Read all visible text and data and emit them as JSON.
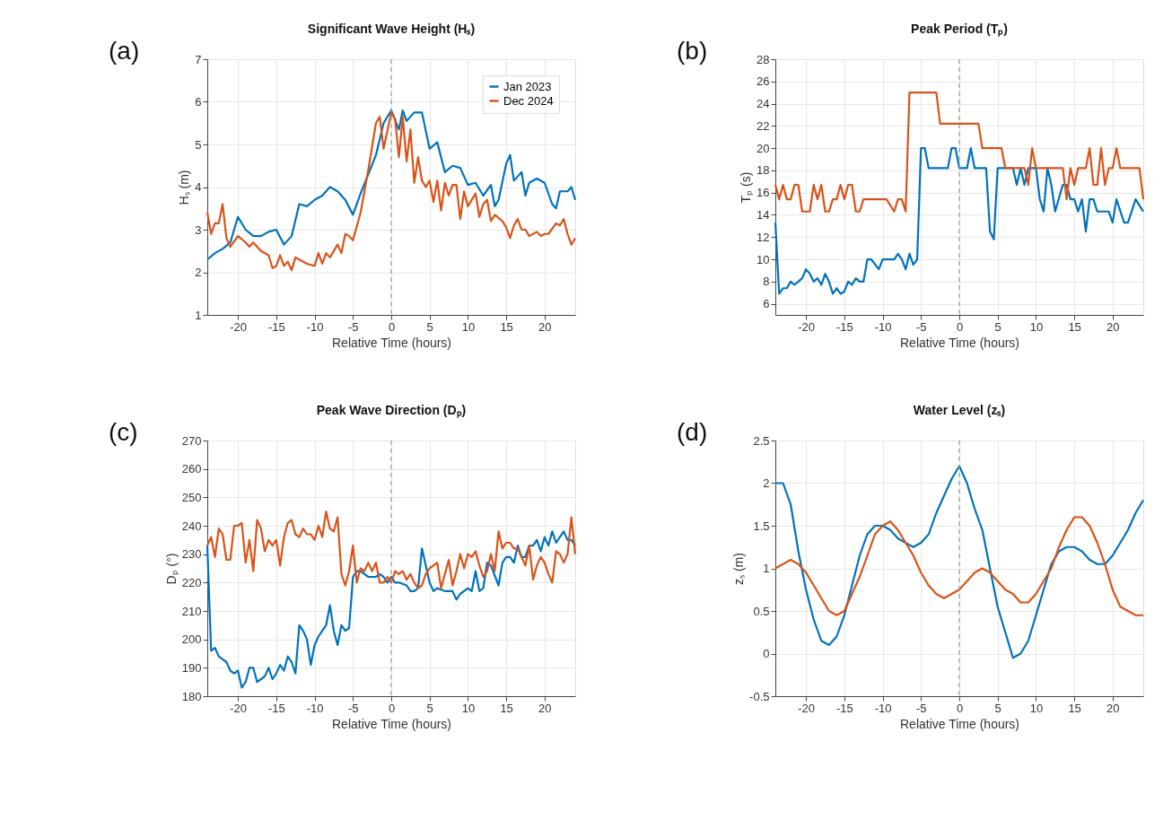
{
  "chart_data": [
    {
      "type": "line",
      "title": "Significant Wave Height (Hₛ)",
      "xlabel": "Relative Time (hours)",
      "ylabel": "Hₛ (m)",
      "annotations": [
        "(a)"
      ],
      "xlim": [
        -24,
        24
      ],
      "xticks": [
        -20,
        -15,
        -10,
        -5,
        0,
        5,
        10,
        15,
        20
      ],
      "ylim": [
        1,
        7
      ],
      "yticks": [
        1,
        2,
        3,
        4,
        5,
        6,
        7
      ],
      "grid": true,
      "legend": "top right",
      "line_style": "solid",
      "ref_lines": [
        {
          "axis": "x",
          "value": 0,
          "color": "#999999",
          "line_style": "dashed"
        }
      ],
      "series": [
        {
          "name": "Jan 2023",
          "color": "#0072bd",
          "x": [
            -24,
            -23,
            -22,
            -21,
            -20,
            -19,
            -18,
            -17,
            -16,
            -15,
            -14,
            -13,
            -12,
            -11,
            -10,
            -9,
            -8,
            -7,
            -6,
            -5,
            -4,
            -3,
            -2,
            -1,
            0,
            1,
            1.5,
            2,
            3,
            4,
            5,
            6,
            7,
            8,
            9,
            10,
            11,
            12,
            13,
            13.5,
            14,
            15,
            15.5,
            16,
            17,
            17.5,
            18,
            19,
            20,
            21,
            21.5,
            22,
            23,
            23.5,
            24
          ],
          "values": [
            2.3,
            2.45,
            2.55,
            2.7,
            3.3,
            3.0,
            2.85,
            2.85,
            2.95,
            3.0,
            2.65,
            2.85,
            3.6,
            3.55,
            3.7,
            3.8,
            4.0,
            3.9,
            3.7,
            3.35,
            3.85,
            4.3,
            4.75,
            5.5,
            5.8,
            5.35,
            5.8,
            5.55,
            5.75,
            5.75,
            4.9,
            5.05,
            4.35,
            4.5,
            4.45,
            4.05,
            4.1,
            3.8,
            4.05,
            3.55,
            3.7,
            4.55,
            4.75,
            4.15,
            4.35,
            3.8,
            4.1,
            4.2,
            4.1,
            3.6,
            3.5,
            3.9,
            3.9,
            4.0,
            3.7
          ]
        },
        {
          "name": "Dec 2024",
          "color": "#d95319",
          "x": [
            -24,
            -23.5,
            -23,
            -22.5,
            -22,
            -21.5,
            -21,
            -20,
            -19,
            -18.5,
            -18,
            -17,
            -16,
            -15.5,
            -15,
            -14.5,
            -14,
            -13.5,
            -13,
            -12.5,
            -12,
            -11,
            -10,
            -9.5,
            -9,
            -8.5,
            -8,
            -7,
            -6.5,
            -6,
            -5.5,
            -5,
            -4,
            -3,
            -2,
            -1.5,
            -1,
            0,
            0.5,
            1,
            1.5,
            2,
            2.5,
            3,
            3.5,
            4,
            4.5,
            5,
            5.5,
            6,
            6.5,
            7,
            7.5,
            8,
            8.5,
            9,
            9.5,
            10,
            11,
            11.5,
            12,
            12.5,
            13,
            13.5,
            14.5,
            15,
            15.5,
            16,
            16.5,
            17,
            17.5,
            18,
            19,
            19.5,
            20,
            20.5,
            21.5,
            22,
            22.5,
            23,
            23.5,
            24
          ],
          "values": [
            3.4,
            2.9,
            3.15,
            3.15,
            3.6,
            2.8,
            2.6,
            2.85,
            2.7,
            2.6,
            2.7,
            2.5,
            2.4,
            2.1,
            2.15,
            2.4,
            2.15,
            2.25,
            2.05,
            2.35,
            2.3,
            2.2,
            2.15,
            2.45,
            2.2,
            2.45,
            2.35,
            2.65,
            2.45,
            2.9,
            2.85,
            2.75,
            3.4,
            4.4,
            5.5,
            5.65,
            4.9,
            5.75,
            5.6,
            4.7,
            5.65,
            4.6,
            5.35,
            4.1,
            4.7,
            4.15,
            4.0,
            4.15,
            3.65,
            4.15,
            3.45,
            4.1,
            3.8,
            4.05,
            4.05,
            3.25,
            3.9,
            3.55,
            3.85,
            3.3,
            3.6,
            3.7,
            3.2,
            3.35,
            3.2,
            3.05,
            2.8,
            3.1,
            3.25,
            3.0,
            3.0,
            2.85,
            2.95,
            2.85,
            2.9,
            2.9,
            3.15,
            3.1,
            3.25,
            2.9,
            2.65,
            2.8
          ]
        }
      ]
    },
    {
      "type": "line",
      "title": "Peak Period (Tₚ)",
      "xlabel": "Relative Time (hours)",
      "ylabel": "Tₚ (s)",
      "annotations": [
        "(b)"
      ],
      "xlim": [
        -24,
        24
      ],
      "xticks": [
        -20,
        -15,
        -10,
        -5,
        0,
        5,
        10,
        15,
        20
      ],
      "ylim": [
        5,
        28
      ],
      "yticks": [
        6,
        8,
        10,
        12,
        14,
        16,
        18,
        20,
        22,
        24,
        26,
        28
      ],
      "grid": true,
      "line_style": "solid",
      "ref_lines": [
        {
          "axis": "x",
          "value": 0,
          "color": "#999999",
          "line_style": "dashed"
        }
      ],
      "series": [
        {
          "color": "#0072bd",
          "x": [
            -24,
            -23.5,
            -23,
            -22.5,
            -22,
            -21.5,
            -21,
            -20.5,
            -20,
            -19.5,
            -19,
            -18.5,
            -18,
            -17.5,
            -17,
            -16.5,
            -16,
            -15.5,
            -15,
            -14.5,
            -14,
            -13.5,
            -13,
            -12.5,
            -12,
            -11.5,
            -10.5,
            -10,
            -8.5,
            -8,
            -7.5,
            -7,
            -6.5,
            -6,
            -5.5,
            -5,
            -4.5,
            -4,
            -1.5,
            -1,
            -0.5,
            0,
            1,
            1.5,
            2,
            3.5,
            4,
            4.5,
            5,
            7,
            7.5,
            8,
            8.5,
            9,
            10,
            10.5,
            11,
            11.5,
            12,
            12.5,
            13.5,
            14,
            14.5,
            15,
            15.5,
            16,
            16.5,
            17,
            17.5,
            18,
            19.5,
            20,
            20.5,
            21.5,
            22,
            23,
            24
          ],
          "values": [
            13.3,
            6.9,
            7.4,
            7.4,
            8.0,
            7.7,
            8.0,
            8.3,
            9.1,
            8.7,
            8.0,
            8.3,
            7.7,
            8.7,
            8.0,
            6.9,
            7.4,
            6.9,
            7.1,
            8.0,
            7.7,
            8.3,
            8.0,
            8.0,
            10.0,
            10.0,
            9.1,
            10.0,
            10.0,
            10.5,
            10.0,
            9.1,
            10.5,
            9.5,
            10.0,
            20.0,
            20.0,
            18.2,
            18.2,
            20.0,
            20.0,
            18.2,
            18.2,
            20.0,
            18.2,
            18.2,
            12.5,
            11.8,
            18.2,
            18.2,
            16.7,
            18.2,
            16.7,
            18.2,
            18.2,
            15.4,
            14.3,
            18.2,
            16.7,
            14.3,
            16.7,
            16.7,
            15.4,
            15.4,
            14.3,
            15.4,
            12.5,
            15.4,
            15.4,
            14.3,
            14.3,
            13.3,
            15.4,
            13.3,
            13.3,
            15.4,
            14.3
          ]
        },
        {
          "color": "#d95319",
          "x": [
            -24,
            -23.5,
            -23,
            -22.5,
            -22,
            -21.5,
            -21,
            -20.5,
            -19.5,
            -19,
            -18.5,
            -18,
            -17.5,
            -17,
            -16.5,
            -16,
            -15.5,
            -15,
            -14.5,
            -14,
            -13.5,
            -13,
            -12.5,
            -9.5,
            -8.5,
            -8,
            -7.5,
            -7,
            -6.5,
            -3,
            -2.5,
            2.5,
            3,
            5.5,
            6,
            8.5,
            9,
            9.5,
            10,
            13.5,
            14,
            14.5,
            15,
            15.5,
            16.5,
            17,
            17.5,
            18,
            18.5,
            19,
            19.5,
            20,
            20.5,
            21,
            23.5,
            24
          ],
          "values": [
            16.7,
            15.4,
            16.7,
            15.4,
            15.4,
            16.7,
            16.7,
            14.3,
            14.3,
            16.7,
            15.4,
            16.7,
            14.3,
            14.3,
            15.4,
            15.4,
            16.7,
            15.4,
            16.7,
            16.7,
            14.3,
            14.3,
            15.4,
            15.4,
            14.3,
            15.4,
            15.4,
            14.3,
            25.0,
            25.0,
            22.2,
            22.2,
            20.0,
            20.0,
            18.2,
            18.2,
            16.7,
            20.0,
            18.2,
            18.2,
            15.4,
            18.2,
            16.7,
            18.2,
            18.2,
            20.0,
            16.7,
            16.7,
            20.0,
            16.7,
            18.2,
            18.2,
            20.0,
            18.2,
            18.2,
            15.4
          ]
        }
      ]
    },
    {
      "type": "line",
      "title": "Peak Wave Direction (Dₚ)",
      "xlabel": "Relative Time (hours)",
      "ylabel": "Dₚ (°)",
      "annotations": [
        "(c)"
      ],
      "xlim": [
        -24,
        24
      ],
      "xticks": [
        -20,
        -15,
        -10,
        -5,
        0,
        5,
        10,
        15,
        20
      ],
      "ylim": [
        180,
        270
      ],
      "yticks": [
        180,
        190,
        200,
        210,
        220,
        230,
        240,
        250,
        260,
        270
      ],
      "grid": true,
      "line_style": "solid",
      "ref_lines": [
        {
          "axis": "x",
          "value": 0,
          "color": "#999999",
          "line_style": "dashed"
        }
      ],
      "series": [
        {
          "color": "#0072bd",
          "x": [
            -24,
            -23.5,
            -23,
            -22.5,
            -22,
            -21.5,
            -21,
            -20.5,
            -20,
            -19.5,
            -19,
            -18.5,
            -18,
            -17.5,
            -17,
            -16.5,
            -16,
            -15.5,
            -15,
            -14.5,
            -14,
            -13.5,
            -13,
            -12.5,
            -12,
            -11.5,
            -11,
            -10.5,
            -10,
            -9.5,
            -9,
            -8.5,
            -8,
            -7.5,
            -7,
            -6.5,
            -6,
            -5.5,
            -5,
            -4.5,
            -4,
            -3,
            -2,
            -1.5,
            -1,
            -0.5,
            0,
            0.5,
            1,
            2,
            2.5,
            3,
            3.5,
            4,
            5,
            5.5,
            6,
            7,
            8,
            8.5,
            9,
            10,
            10.5,
            11,
            11.5,
            12,
            12.5,
            13,
            14,
            14.5,
            15,
            15.5,
            16,
            16.5,
            17,
            17.5,
            18,
            18.5,
            19,
            19.5,
            20,
            20.5,
            21,
            21.5,
            22,
            22.5,
            23,
            23.5,
            24
          ],
          "values": [
            233,
            196,
            197,
            194,
            193,
            192,
            189,
            188,
            189,
            183,
            185,
            190,
            190,
            185,
            186,
            187,
            190,
            186,
            188,
            191,
            189,
            194,
            192,
            188,
            205,
            203,
            200,
            191,
            198,
            201,
            203,
            205,
            212,
            203,
            198,
            205,
            203,
            204,
            222,
            224,
            224,
            222,
            222,
            223,
            222,
            220,
            222,
            220,
            220,
            219,
            217,
            217,
            218,
            232,
            220,
            217,
            218,
            217,
            217,
            214,
            216,
            218,
            217,
            224,
            217,
            218,
            227,
            226,
            219,
            227,
            229,
            229,
            227,
            233,
            229,
            229,
            233,
            233,
            235,
            231,
            236,
            233,
            238,
            234,
            236,
            238,
            235,
            235,
            233
          ]
        },
        {
          "color": "#d95319",
          "x": [
            -24,
            -23.5,
            -23,
            -22.5,
            -22,
            -21.5,
            -21,
            -20.5,
            -20,
            -19.5,
            -19,
            -18.5,
            -18,
            -17.5,
            -17,
            -16.5,
            -16,
            -15.5,
            -15,
            -14.5,
            -14,
            -13.5,
            -13,
            -12.5,
            -12,
            -11.5,
            -11,
            -10.5,
            -10,
            -9.5,
            -9,
            -8.5,
            -8,
            -7.5,
            -7,
            -6.5,
            -6,
            -5.5,
            -5,
            -4.5,
            -4,
            -3.5,
            -3,
            -2.5,
            -2,
            -1.5,
            -1,
            -0.5,
            0,
            0.5,
            1,
            1.5,
            2,
            2.5,
            3,
            3.5,
            4,
            4.5,
            5,
            5.5,
            6,
            6.5,
            7,
            7.5,
            8,
            8.5,
            9,
            9.5,
            10,
            10.5,
            11,
            11.5,
            12,
            12.5,
            13,
            13.5,
            14,
            14.5,
            15,
            15.5,
            16,
            16.5,
            17,
            17.5,
            18,
            18.5,
            19,
            19.5,
            20,
            20.5,
            21,
            21.5,
            22,
            22.5,
            23,
            23.5,
            24
          ],
          "values": [
            233,
            236,
            229,
            239,
            237,
            228,
            228,
            240,
            240,
            241,
            227,
            235,
            224,
            242,
            239,
            231,
            235,
            233,
            235,
            226,
            236,
            241,
            242,
            237,
            236,
            239,
            237,
            237,
            235,
            240,
            236,
            245,
            239,
            238,
            243,
            223,
            219,
            224,
            233,
            220,
            225,
            224,
            227,
            224,
            227,
            220,
            220,
            222,
            220,
            224,
            223,
            224,
            221,
            223,
            220,
            218,
            219,
            223,
            225,
            226,
            227,
            218,
            223,
            228,
            219,
            224,
            230,
            225,
            230,
            229,
            231,
            226,
            222,
            224,
            230,
            224,
            238,
            232,
            234,
            234,
            232,
            232,
            229,
            226,
            233,
            221,
            226,
            229,
            227,
            223,
            220,
            231,
            230,
            227,
            230,
            243,
            230
          ]
        }
      ]
    },
    {
      "type": "line",
      "title": "Water Level (zₛ)",
      "xlabel": "Relative Time (hours)",
      "ylabel": "zₛ (m)",
      "annotations": [
        "(d)"
      ],
      "xlim": [
        -24,
        24
      ],
      "xticks": [
        -20,
        -15,
        -10,
        -5,
        0,
        5,
        10,
        15,
        20
      ],
      "ylim": [
        -0.5,
        2.5
      ],
      "yticks": [
        -0.5,
        0,
        0.5,
        1,
        1.5,
        2,
        2.5
      ],
      "grid": true,
      "line_style": "solid",
      "ref_lines": [
        {
          "axis": "x",
          "value": 0,
          "color": "#999999",
          "line_style": "dashed"
        }
      ],
      "series": [
        {
          "color": "#0072bd",
          "x": [
            -24,
            -23,
            -22,
            -21,
            -20,
            -19,
            -18,
            -17,
            -16,
            -15,
            -14,
            -13,
            -12,
            -11,
            -10,
            -9,
            -8,
            -7,
            -6,
            -5,
            -4,
            -3,
            -2,
            -1,
            0,
            1,
            2,
            3,
            4,
            5,
            6,
            7,
            8,
            9,
            10,
            11,
            12,
            13,
            14,
            15,
            16,
            17,
            18,
            19,
            20,
            21,
            22,
            23,
            24
          ],
          "values": [
            2.0,
            2.0,
            1.75,
            1.2,
            0.75,
            0.4,
            0.15,
            0.1,
            0.2,
            0.45,
            0.8,
            1.15,
            1.4,
            1.5,
            1.5,
            1.45,
            1.35,
            1.3,
            1.25,
            1.3,
            1.4,
            1.65,
            1.85,
            2.05,
            2.2,
            2.0,
            1.7,
            1.45,
            1.0,
            0.55,
            0.25,
            -0.05,
            0.0,
            0.15,
            0.45,
            0.75,
            1.05,
            1.2,
            1.25,
            1.25,
            1.2,
            1.1,
            1.05,
            1.05,
            1.15,
            1.3,
            1.45,
            1.65,
            1.8
          ]
        },
        {
          "color": "#d95319",
          "x": [
            -24,
            -23,
            -22,
            -21,
            -20,
            -19,
            -18,
            -17,
            -16,
            -15,
            -14,
            -13,
            -12,
            -11,
            -10,
            -9,
            -8,
            -7,
            -6,
            -5,
            -4,
            -3,
            -2,
            -1,
            0,
            1,
            2,
            3,
            4,
            5,
            6,
            7,
            8,
            9,
            10,
            11,
            12,
            13,
            14,
            15,
            16,
            17,
            18,
            19,
            20,
            21,
            22,
            23,
            24
          ],
          "values": [
            1.0,
            1.05,
            1.1,
            1.05,
            0.95,
            0.8,
            0.65,
            0.5,
            0.45,
            0.5,
            0.7,
            0.9,
            1.15,
            1.4,
            1.5,
            1.55,
            1.45,
            1.3,
            1.15,
            0.95,
            0.8,
            0.7,
            0.65,
            0.7,
            0.75,
            0.85,
            0.95,
            1.0,
            0.95,
            0.85,
            0.75,
            0.7,
            0.6,
            0.6,
            0.7,
            0.85,
            1.0,
            1.25,
            1.45,
            1.6,
            1.6,
            1.5,
            1.3,
            1.05,
            0.75,
            0.55,
            0.5,
            0.45,
            0.45
          ]
        }
      ]
    }
  ]
}
